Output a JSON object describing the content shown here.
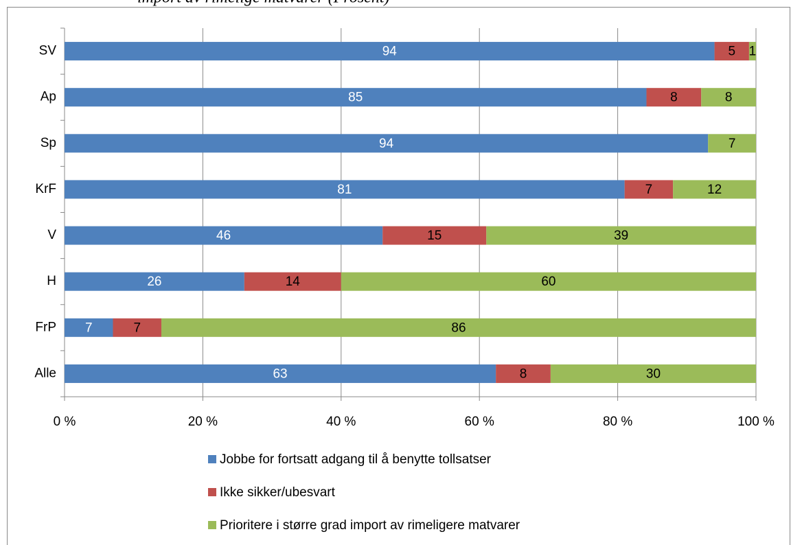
{
  "chart_data": {
    "type": "bar",
    "orientation": "horizontal",
    "stacked": "percent",
    "title": "import av rimelige matvarer (Prosent)",
    "categories": [
      "SV",
      "Ap",
      "Sp",
      "KrF",
      "V",
      "H",
      "FrP",
      "Alle"
    ],
    "series": [
      {
        "name": "Jobbe for fortsatt adgang til å benytte tollsatser",
        "color": "#4f81bd",
        "values": [
          94,
          85,
          94,
          81,
          46,
          26,
          7,
          63
        ]
      },
      {
        "name": "Ikke sikker/ubesvart",
        "color": "#c0504d",
        "values": [
          5,
          8,
          null,
          7,
          15,
          14,
          7,
          8
        ]
      },
      {
        "name": "Prioritere i større grad import av rimeligere matvarer",
        "color": "#9bbb59",
        "values": [
          1,
          8,
          7,
          12,
          39,
          60,
          86,
          30
        ]
      }
    ],
    "xlim": [
      0,
      100
    ],
    "xticks": [
      {
        "value": 0,
        "label": "0 %"
      },
      {
        "value": 20,
        "label": "20 %"
      },
      {
        "value": 40,
        "label": "40 %"
      },
      {
        "value": 60,
        "label": "60 %"
      },
      {
        "value": 80,
        "label": "80 %"
      },
      {
        "value": 100,
        "label": "100 %"
      }
    ],
    "grid": true,
    "legend": "bottom"
  }
}
